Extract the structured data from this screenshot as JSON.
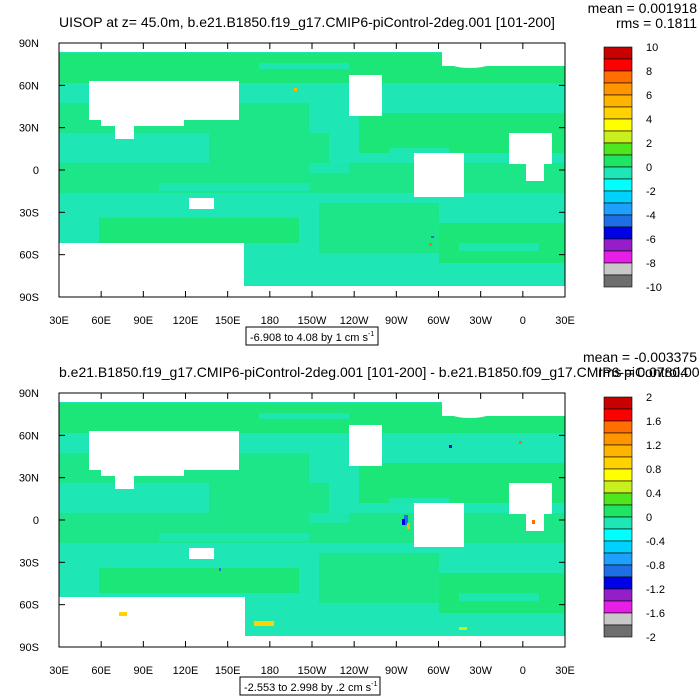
{
  "colors": {
    "palette": [
      "#6e6e6e",
      "#c8c8c8",
      "#e61ee6",
      "#961ec8",
      "#0000e6",
      "#1e6ee6",
      "#1ea0ff",
      "#00d2ff",
      "#00ffff",
      "#1ee6b4",
      "#1ee664",
      "#50e61e",
      "#c8f01e",
      "#ffff00",
      "#ffd200",
      "#ffb400",
      "#ff9600",
      "#ff6e00",
      "#ff0000",
      "#c80000"
    ],
    "ocean_zero_1": "#1ee6b4",
    "ocean_zero_2": "#1ee664",
    "land": "#ffffff"
  },
  "panels": [
    {
      "title": "UISOP at z=  45.0m, b.e21.B1850.f19_g17.CMIP6-piControl-2deg.001 [101-200]",
      "mean_text": "mean = 0.001918",
      "rms_text": "rms = 0.1811",
      "range_text": "-6.908 to 4.08 by 1 cm s",
      "range_sup": "-1",
      "colorbar_labels": [
        "10",
        "8",
        "6",
        "4",
        "2",
        "0",
        "-2",
        "-4",
        "-6",
        "-8",
        "-10"
      ]
    },
    {
      "title": "b.e21.B1850.f19_g17.CMIP6-piControl-2deg.001 [101-200] - b.e21.B1850.f09_g17.CMIP6-piControl.001",
      "mean_text": "mean = -0.003375",
      "rms_text": "rms = 0.07804",
      "range_text": "-2.553 to 2.998 by .2 cm s",
      "range_sup": "-1",
      "colorbar_labels": [
        "2",
        "1.6",
        "1.2",
        "0.8",
        "0.4",
        "0",
        "-0.4",
        "-0.8",
        "-1.2",
        "-1.6",
        "-2"
      ]
    }
  ],
  "chart_data": [
    {
      "type": "heatmap",
      "title": "UISOP at z=  45.0m, b.e21.B1850.f19_g17.CMIP6-piControl-2deg.001 [101-200]",
      "x_ticks": [
        "30E",
        "60E",
        "90E",
        "120E",
        "150E",
        "180",
        "150W",
        "120W",
        "90W",
        "60W",
        "30W",
        "0",
        "30E"
      ],
      "y_ticks": [
        "90N",
        "60N",
        "30N",
        "0",
        "30S",
        "60S",
        "90S"
      ],
      "colorbar_levels": [
        -10,
        -9,
        -8,
        -7,
        -6,
        -5,
        -4,
        -3,
        -2,
        -1,
        0,
        1,
        2,
        3,
        4,
        5,
        6,
        7,
        8,
        9,
        10
      ],
      "min": -6.908,
      "max": 4.08,
      "interval": 1,
      "units": "cm s-1",
      "mean": 0.001918,
      "rms": 0.1811
    },
    {
      "type": "heatmap",
      "title": "b.e21.B1850.f19_g17.CMIP6-piControl-2deg.001 [101-200] - b.e21.B1850.f09_g17.CMIP6-piControl.001",
      "x_ticks": [
        "30E",
        "60E",
        "90E",
        "120E",
        "150E",
        "180",
        "150W",
        "120W",
        "90W",
        "60W",
        "30W",
        "0",
        "30E"
      ],
      "y_ticks": [
        "90N",
        "60N",
        "30N",
        "0",
        "30S",
        "60S",
        "90S"
      ],
      "colorbar_levels": [
        -2,
        -1.8,
        -1.6,
        -1.4,
        -1.2,
        -1,
        -0.8,
        -0.6,
        -0.4,
        -0.2,
        0,
        0.2,
        0.4,
        0.6,
        0.8,
        1,
        1.2,
        1.4,
        1.6,
        1.8,
        2
      ],
      "min": -2.553,
      "max": 2.998,
      "interval": 0.2,
      "units": "cm s-1",
      "mean": -0.003375,
      "rms": 0.07804
    }
  ]
}
